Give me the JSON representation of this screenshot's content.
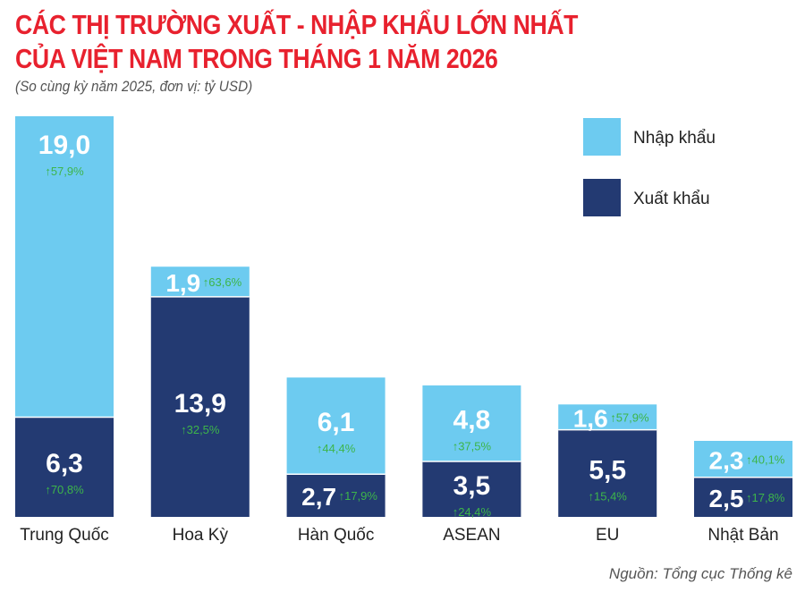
{
  "chart_data": {
    "type": "bar",
    "stacked": true,
    "title_lines": [
      "CÁC THỊ TRƯỜNG XUẤT - NHẬP KHẨU LỚN NHẤT",
      "CỦA VIỆT NAM TRONG THÁNG 1 NĂM 2026"
    ],
    "subtitle": "(So cùng kỳ năm 2025, đơn vị: tỷ USD)",
    "source": "Nguồn: Tổng cục Thống kê",
    "categories": [
      "Trung Quốc",
      "Hoa Kỳ",
      "Hàn Quốc",
      "ASEAN",
      "EU",
      "Nhật Bản"
    ],
    "series": [
      {
        "name": "Xuất khẩu",
        "color": "#233a72",
        "values": [
          6.3,
          13.9,
          2.7,
          3.5,
          5.5,
          2.5
        ],
        "labels": [
          "6,3",
          "13,9",
          "2,7",
          "3,5",
          "5,5",
          "2,5"
        ],
        "changes": [
          "70,8%",
          "32,5%",
          "17,9%",
          "24,4%",
          "15,4%",
          "17,8%"
        ]
      },
      {
        "name": "Nhập khẩu",
        "color": "#6dcbf0",
        "values": [
          19.0,
          1.9,
          6.1,
          4.8,
          1.6,
          2.3
        ],
        "labels": [
          "19,0",
          "1,9",
          "6,1",
          "4,8",
          "1,6",
          "2,3"
        ],
        "changes": [
          "57,9%",
          "63,6%",
          "44,4%",
          "37,5%",
          "57,9%",
          "40,1%"
        ]
      }
    ],
    "change_direction": "up",
    "change_color": "#3db54a",
    "legend_placement": "top-right",
    "grid": false,
    "ylim": [
      0,
      25.3
    ]
  }
}
